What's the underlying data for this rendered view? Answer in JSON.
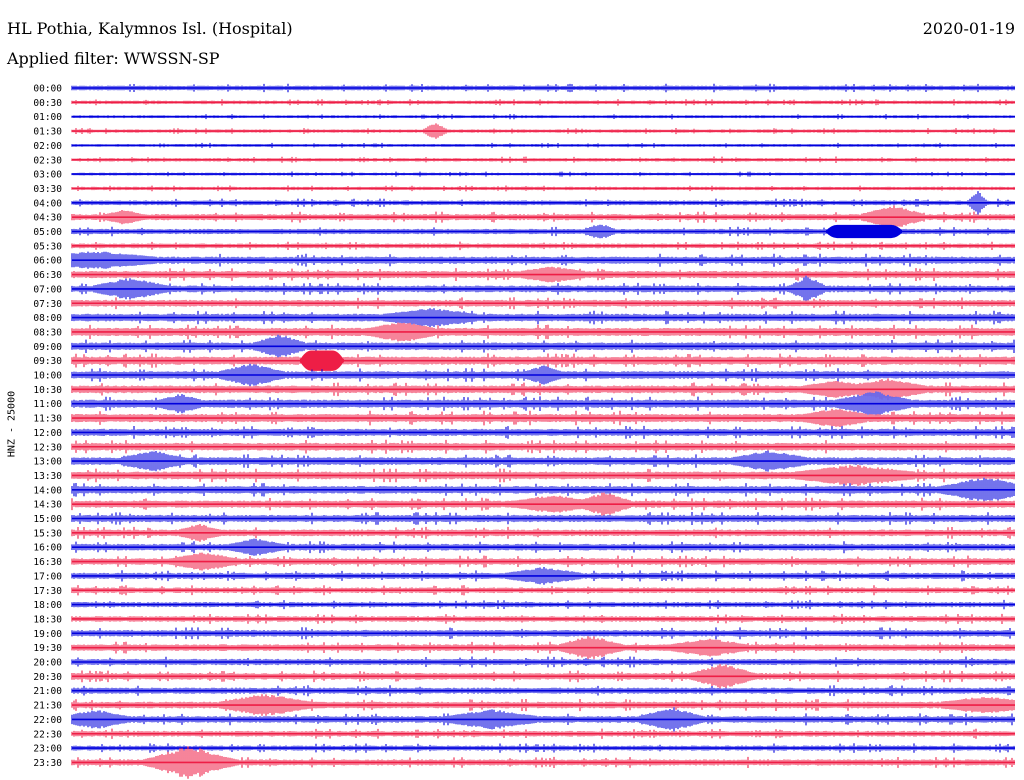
{
  "header": {
    "station": "HL Pothia, Kalymnos Isl. (Hospital)",
    "date": "2020-01-19",
    "filter": "Applied filter: WWSSN-SP",
    "channel": "HNZ - 25000"
  },
  "chart_data": {
    "type": "line",
    "title": "HL Pothia, Kalymnos Isl. (Hospital)",
    "subtitle": "Applied filter: WWSSN-SP",
    "ylabel": "HNZ - 25000",
    "rows": [
      "00:00",
      "00:30",
      "01:00",
      "01:30",
      "02:00",
      "02:30",
      "03:00",
      "03:30",
      "04:00",
      "04:30",
      "05:00",
      "05:30",
      "06:00",
      "06:30",
      "07:00",
      "07:30",
      "08:00",
      "08:30",
      "09:00",
      "09:30",
      "10:00",
      "10:30",
      "11:00",
      "11:30",
      "12:00",
      "12:30",
      "13:00",
      "13:30",
      "14:00",
      "14:30",
      "15:00",
      "15:30",
      "16:00",
      "16:30",
      "17:00",
      "17:30",
      "18:00",
      "18:30",
      "19:00",
      "19:30",
      "20:00",
      "20:30",
      "21:00",
      "21:30",
      "22:00",
      "22:30",
      "23:00",
      "23:30"
    ],
    "row_minutes": 30,
    "colors": [
      "#0000dd",
      "#ee1e46"
    ],
    "amplitude": [
      [
        0.15,
        0.2
      ],
      [
        0.1,
        0.15
      ],
      [
        0.08,
        0.12
      ],
      [
        0.1,
        0.14
      ],
      [
        0.08,
        0.12
      ],
      [
        0.1,
        0.15
      ],
      [
        0.08,
        0.12
      ],
      [
        0.1,
        0.14
      ],
      [
        0.14,
        0.2
      ],
      [
        0.18,
        0.26
      ],
      [
        0.16,
        0.22
      ],
      [
        0.14,
        0.2
      ],
      [
        0.22,
        0.3
      ],
      [
        0.22,
        0.3
      ],
      [
        0.2,
        0.28
      ],
      [
        0.2,
        0.28
      ],
      [
        0.24,
        0.32
      ],
      [
        0.26,
        0.34
      ],
      [
        0.24,
        0.32
      ],
      [
        0.26,
        0.34
      ],
      [
        0.24,
        0.32
      ],
      [
        0.24,
        0.32
      ],
      [
        0.26,
        0.34
      ],
      [
        0.26,
        0.34
      ],
      [
        0.22,
        0.3
      ],
      [
        0.24,
        0.32
      ],
      [
        0.24,
        0.32
      ],
      [
        0.24,
        0.32
      ],
      [
        0.24,
        0.32
      ],
      [
        0.22,
        0.3
      ],
      [
        0.22,
        0.3
      ],
      [
        0.2,
        0.28
      ],
      [
        0.2,
        0.28
      ],
      [
        0.2,
        0.28
      ],
      [
        0.18,
        0.26
      ],
      [
        0.16,
        0.24
      ],
      [
        0.14,
        0.22
      ],
      [
        0.16,
        0.24
      ],
      [
        0.2,
        0.28
      ],
      [
        0.2,
        0.28
      ],
      [
        0.18,
        0.26
      ],
      [
        0.2,
        0.28
      ],
      [
        0.18,
        0.26
      ],
      [
        0.2,
        0.28
      ],
      [
        0.2,
        0.28
      ],
      [
        0.16,
        0.24
      ],
      [
        0.14,
        0.22
      ],
      [
        0.18,
        0.26
      ]
    ],
    "events": [
      {
        "row": 3,
        "at": 0.385,
        "amp": 0.7,
        "dur": 0.003
      },
      {
        "row": 8,
        "at": 0.96,
        "amp": 0.9,
        "dur": 0.002
      },
      {
        "row": 9,
        "at": 0.87,
        "amp": 0.8,
        "dur": 0.01
      },
      {
        "row": 9,
        "at": 0.055,
        "amp": 0.4,
        "dur": 0.005
      },
      {
        "row": 10,
        "at": 0.84,
        "amp": 0.55,
        "dur": 0.07,
        "block": true
      },
      {
        "row": 10,
        "at": 0.56,
        "amp": 0.5,
        "dur": 0.004
      },
      {
        "row": 12,
        "at": 0.025,
        "amp": 0.5,
        "dur": 0.02
      },
      {
        "row": 13,
        "at": 0.51,
        "amp": 0.4,
        "dur": 0.01
      },
      {
        "row": 14,
        "at": 0.062,
        "amp": 0.7,
        "dur": 0.012
      },
      {
        "row": 14,
        "at": 0.78,
        "amp": 0.9,
        "dur": 0.005
      },
      {
        "row": 16,
        "at": 0.38,
        "amp": 0.5,
        "dur": 0.015
      },
      {
        "row": 17,
        "at": 0.35,
        "amp": 0.6,
        "dur": 0.01
      },
      {
        "row": 18,
        "at": 0.22,
        "amp": 0.7,
        "dur": 0.008
      },
      {
        "row": 19,
        "at": 0.265,
        "amp": 0.85,
        "dur": 0.035,
        "block": true
      },
      {
        "row": 20,
        "at": 0.19,
        "amp": 0.7,
        "dur": 0.01
      },
      {
        "row": 20,
        "at": 0.5,
        "amp": 0.5,
        "dur": 0.005
      },
      {
        "row": 21,
        "at": 0.865,
        "amp": 0.65,
        "dur": 0.012
      },
      {
        "row": 21,
        "at": 0.81,
        "amp": 0.45,
        "dur": 0.01
      },
      {
        "row": 22,
        "at": 0.85,
        "amp": 0.75,
        "dur": 0.012
      },
      {
        "row": 22,
        "at": 0.115,
        "amp": 0.5,
        "dur": 0.006
      },
      {
        "row": 23,
        "at": 0.81,
        "amp": 0.5,
        "dur": 0.01
      },
      {
        "row": 26,
        "at": 0.085,
        "amp": 0.6,
        "dur": 0.01
      },
      {
        "row": 26,
        "at": 0.74,
        "amp": 0.6,
        "dur": 0.012
      },
      {
        "row": 27,
        "at": 0.83,
        "amp": 0.6,
        "dur": 0.02
      },
      {
        "row": 28,
        "at": 0.97,
        "amp": 0.8,
        "dur": 0.015
      },
      {
        "row": 29,
        "at": 0.51,
        "amp": 0.5,
        "dur": 0.012
      },
      {
        "row": 29,
        "at": 0.565,
        "amp": 0.75,
        "dur": 0.008
      },
      {
        "row": 31,
        "at": 0.135,
        "amp": 0.5,
        "dur": 0.006
      },
      {
        "row": 32,
        "at": 0.195,
        "amp": 0.5,
        "dur": 0.008
      },
      {
        "row": 33,
        "at": 0.14,
        "amp": 0.55,
        "dur": 0.01
      },
      {
        "row": 34,
        "at": 0.5,
        "amp": 0.5,
        "dur": 0.012
      },
      {
        "row": 39,
        "at": 0.55,
        "amp": 0.8,
        "dur": 0.01
      },
      {
        "row": 39,
        "at": 0.675,
        "amp": 0.55,
        "dur": 0.012
      },
      {
        "row": 41,
        "at": 0.69,
        "amp": 0.85,
        "dur": 0.01
      },
      {
        "row": 43,
        "at": 0.205,
        "amp": 0.7,
        "dur": 0.015
      },
      {
        "row": 43,
        "at": 0.97,
        "amp": 0.5,
        "dur": 0.015
      },
      {
        "row": 44,
        "at": 0.025,
        "amp": 0.6,
        "dur": 0.01
      },
      {
        "row": 44,
        "at": 0.445,
        "amp": 0.6,
        "dur": 0.015
      },
      {
        "row": 44,
        "at": 0.635,
        "amp": 0.85,
        "dur": 0.01
      },
      {
        "row": 47,
        "at": 0.125,
        "amp": 1.2,
        "dur": 0.015
      }
    ]
  }
}
